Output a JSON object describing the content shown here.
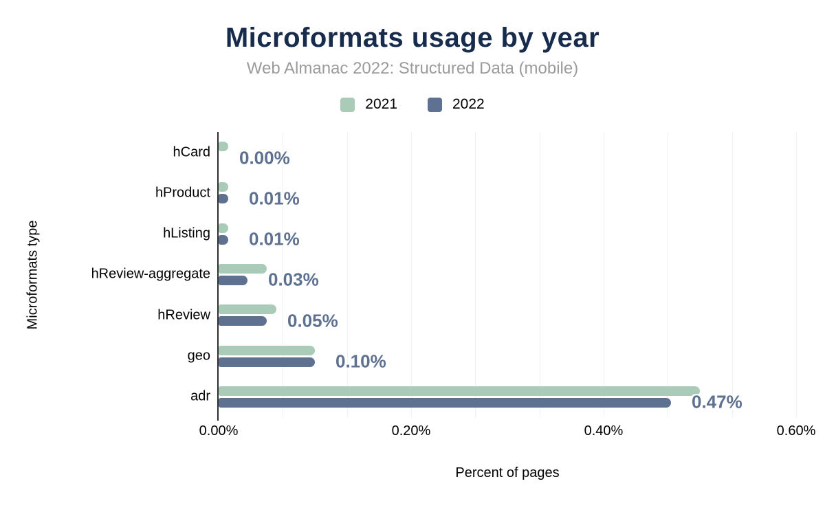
{
  "header": {
    "title": "Microformats usage by year",
    "subtitle": "Web Almanac 2022: Structured Data (mobile)"
  },
  "legend": {
    "items": [
      {
        "label": "2021",
        "color": "#a9cbb7"
      },
      {
        "label": "2022",
        "color": "#5f7190"
      }
    ]
  },
  "chart_data": {
    "type": "bar",
    "orientation": "horizontal",
    "title": "Microformats usage by year",
    "subtitle": "Web Almanac 2022: Structured Data (mobile)",
    "xlabel": "Percent of pages",
    "ylabel": "Microformats type",
    "categories": [
      "hCard",
      "hProduct",
      "hListing",
      "hReview-aggregate",
      "hReview",
      "geo",
      "adr"
    ],
    "series": [
      {
        "name": "2021",
        "color": "#a9cbb7",
        "values": [
          0.01,
          0.01,
          0.01,
          0.05,
          0.06,
          0.1,
          0.5
        ]
      },
      {
        "name": "2022",
        "color": "#5f7190",
        "values": [
          0.0,
          0.01,
          0.01,
          0.03,
          0.05,
          0.1,
          0.47
        ]
      }
    ],
    "data_labels": [
      "0.00%",
      "0.01%",
      "0.01%",
      "0.03%",
      "0.05%",
      "0.10%",
      "0.47%"
    ],
    "data_label_color": "#5e7191",
    "x_ticks": [
      "0.00%",
      "0.20%",
      "0.40%",
      "0.60%"
    ],
    "xlim": [
      0,
      0.6
    ],
    "gridline_count": 9,
    "grid": "vertical",
    "legend_position": "top",
    "axis_color": "#2e2e2e",
    "gridline_color": "#f0eff1",
    "title_color": "#172b4d",
    "subtitle_color": "#9b9b9b"
  }
}
